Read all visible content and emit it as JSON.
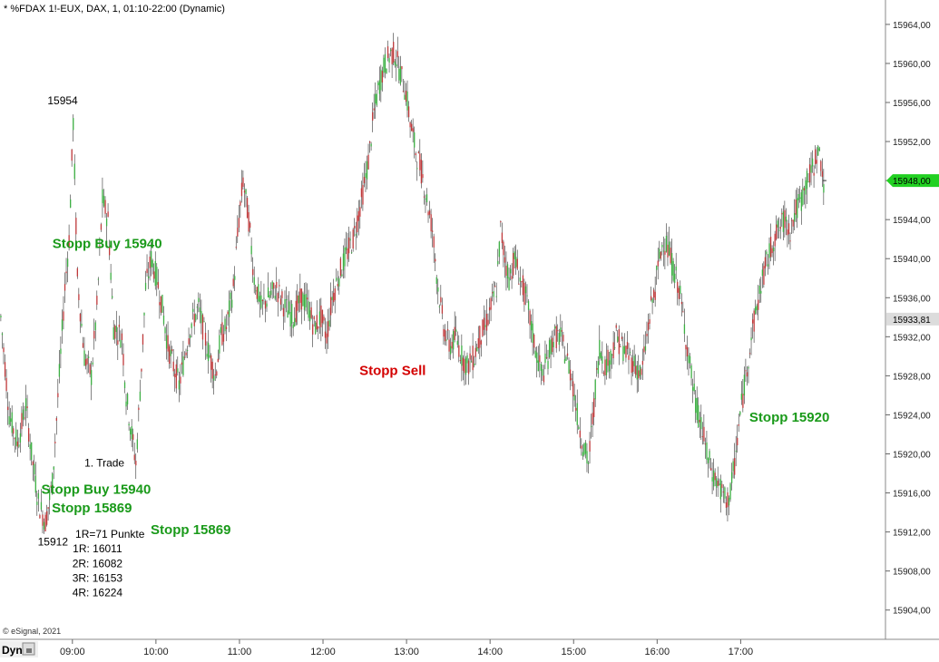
{
  "title": "* %FDAX 1!-EUX, DAX, 1, 01:10-22:00 (Dynamic)",
  "footer": "© eSignal, 2021",
  "dyn_label": "Dyn",
  "last_price_label": "15948,00",
  "ref_price_label": "15933,81",
  "colors": {
    "up": "#3cb043",
    "down": "#c0393b",
    "wick": "#333333",
    "last_bg": "#22d022",
    "ref_bg": "#dcdcdc"
  },
  "chart_data": {
    "type": "candlestick",
    "title": "* %FDAX 1!-EUX, DAX, 1, 01:10-22:00 (Dynamic)",
    "ylim": [
      15901,
      15966.5
    ],
    "y_ticks": [
      "15964,00",
      "15960,00",
      "15956,00",
      "15952,00",
      "15948,00",
      "15944,00",
      "15940,00",
      "15936,00",
      "15932,00",
      "15928,00",
      "15924,00",
      "15920,00",
      "15916,00",
      "15912,00",
      "15908,00",
      "15904,00"
    ],
    "y_tick_values": [
      15964,
      15960,
      15956,
      15952,
      15948,
      15944,
      15940,
      15936,
      15932,
      15928,
      15924,
      15920,
      15916,
      15912,
      15908,
      15904
    ],
    "x_ticks": [
      "09:00",
      "10:00",
      "11:00",
      "12:00",
      "13:00",
      "14:00",
      "15:00",
      "16:00",
      "17:00"
    ],
    "x_tick_minutes": [
      540,
      600,
      660,
      720,
      780,
      840,
      900,
      960,
      1020
    ],
    "x_range_minutes": [
      488,
      1124
    ],
    "last_price": 15948.0,
    "ref_price": 15933.81,
    "price_path": [
      [
        488,
        15934
      ],
      [
        494,
        15924
      ],
      [
        500,
        15921
      ],
      [
        506,
        15925
      ],
      [
        510,
        15920
      ],
      [
        515,
        15915
      ],
      [
        520,
        15913
      ],
      [
        525,
        15917
      ],
      [
        530,
        15928
      ],
      [
        534,
        15937
      ],
      [
        537,
        15942
      ],
      [
        540,
        15954
      ],
      [
        543,
        15938
      ],
      [
        548,
        15930
      ],
      [
        553,
        15928
      ],
      [
        557,
        15935
      ],
      [
        561,
        15946
      ],
      [
        565,
        15944
      ],
      [
        569,
        15933
      ],
      [
        575,
        15932
      ],
      [
        578,
        15926
      ],
      [
        582,
        15922
      ],
      [
        585,
        15919
      ],
      [
        589,
        15929
      ],
      [
        592,
        15937
      ],
      [
        596,
        15940
      ],
      [
        600,
        15938
      ],
      [
        604,
        15935
      ],
      [
        608,
        15931
      ],
      [
        612,
        15929
      ],
      [
        616,
        15927
      ],
      [
        620,
        15930
      ],
      [
        624,
        15933
      ],
      [
        630,
        15935
      ],
      [
        636,
        15931
      ],
      [
        642,
        15928
      ],
      [
        646,
        15932
      ],
      [
        650,
        15933
      ],
      [
        655,
        15937
      ],
      [
        659,
        15944
      ],
      [
        662,
        15948
      ],
      [
        666,
        15944
      ],
      [
        670,
        15938
      ],
      [
        675,
        15935
      ],
      [
        680,
        15936
      ],
      [
        686,
        15937
      ],
      [
        692,
        15935
      ],
      [
        698,
        15934
      ],
      [
        704,
        15936
      ],
      [
        709,
        15935
      ],
      [
        713,
        15933
      ],
      [
        718,
        15934
      ],
      [
        722,
        15932
      ],
      [
        726,
        15936
      ],
      [
        730,
        15938
      ],
      [
        735,
        15940
      ],
      [
        741,
        15942
      ],
      [
        747,
        15946
      ],
      [
        752,
        15950
      ],
      [
        756,
        15955
      ],
      [
        760,
        15958
      ],
      [
        764,
        15960
      ],
      [
        768,
        15961
      ],
      [
        771,
        15961
      ],
      [
        775,
        15959
      ],
      [
        779,
        15957
      ],
      [
        782,
        15954
      ],
      [
        786,
        15951
      ],
      [
        790,
        15949
      ],
      [
        794,
        15946
      ],
      [
        798,
        15943
      ],
      [
        802,
        15937
      ],
      [
        806,
        15933
      ],
      [
        810,
        15931
      ],
      [
        815,
        15932
      ],
      [
        819,
        15930
      ],
      [
        823,
        15929
      ],
      [
        828,
        15930
      ],
      [
        832,
        15932
      ],
      [
        836,
        15933
      ],
      [
        840,
        15935
      ],
      [
        844,
        15937
      ],
      [
        847,
        15943
      ],
      [
        850,
        15940
      ],
      [
        853,
        15938
      ],
      [
        857,
        15940
      ],
      [
        861,
        15938
      ],
      [
        865,
        15936
      ],
      [
        869,
        15933
      ],
      [
        873,
        15930
      ],
      [
        877,
        15928
      ],
      [
        881,
        15930
      ],
      [
        885,
        15932
      ],
      [
        890,
        15932
      ],
      [
        894,
        15930
      ],
      [
        898,
        15928
      ],
      [
        902,
        15924
      ],
      [
        906,
        15921
      ],
      [
        910,
        15919
      ],
      [
        914,
        15925
      ],
      [
        918,
        15931
      ],
      [
        922,
        15929
      ],
      [
        926,
        15930
      ],
      [
        930,
        15932
      ],
      [
        934,
        15931
      ],
      [
        939,
        15930
      ],
      [
        944,
        15929
      ],
      [
        948,
        15928
      ],
      [
        952,
        15932
      ],
      [
        955,
        15935
      ],
      [
        958,
        15937
      ],
      [
        961,
        15940
      ],
      [
        964,
        15942
      ],
      [
        967,
        15941
      ],
      [
        971,
        15939
      ],
      [
        975,
        15937
      ],
      [
        979,
        15933
      ],
      [
        983,
        15929
      ],
      [
        987,
        15925
      ],
      [
        991,
        15923
      ],
      [
        995,
        15920
      ],
      [
        999,
        15918
      ],
      [
        1003,
        15917
      ],
      [
        1006,
        15916
      ],
      [
        1009,
        15915
      ],
      [
        1012,
        15916
      ],
      [
        1015,
        15919
      ],
      [
        1019,
        15924
      ],
      [
        1023,
        15928
      ],
      [
        1027,
        15932
      ],
      [
        1031,
        15935
      ],
      [
        1035,
        15938
      ],
      [
        1039,
        15940
      ],
      [
        1043,
        15942
      ],
      [
        1047,
        15943
      ],
      [
        1051,
        15944
      ],
      [
        1055,
        15943
      ],
      [
        1059,
        15945
      ],
      [
        1063,
        15946
      ],
      [
        1067,
        15948
      ],
      [
        1071,
        15949
      ],
      [
        1074,
        15951
      ],
      [
        1077,
        15950
      ],
      [
        1079,
        15948
      ]
    ],
    "annotations": [
      {
        "text": "15954",
        "color": "black",
        "price": 15955.8,
        "minute": 533
      },
      {
        "text": "Stopp Buy 15940",
        "color": "green",
        "price": 15941.1,
        "minute": 565
      },
      {
        "text": "Stopp Sell",
        "color": "red",
        "price": 15928.1,
        "minute": 770
      },
      {
        "text": "Stopp 15920",
        "color": "green",
        "price": 15923.3,
        "minute": 1055
      },
      {
        "text": "1. Trade",
        "color": "black",
        "price": 15918.7,
        "minute": 563
      },
      {
        "text": "Stopp Buy 15940",
        "color": "green",
        "price": 15915.9,
        "minute": 557
      },
      {
        "text": "Stopp 15869",
        "color": "green",
        "price": 15914.0,
        "minute": 554
      },
      {
        "text": "Stopp 15869",
        "color": "green",
        "price": 15911.8,
        "minute": 625
      },
      {
        "text": "15912",
        "color": "black",
        "price": 15910.6,
        "minute": 526
      },
      {
        "text": "1R=71 Punkte",
        "color": "black",
        "price": 15911.4,
        "minute": 567
      },
      {
        "text": "1R: 16011",
        "color": "black",
        "price": 15909.9,
        "minute": 558
      },
      {
        "text": "2R: 16082",
        "color": "black",
        "price": 15908.4,
        "minute": 558
      },
      {
        "text": "3R: 16153",
        "color": "black",
        "price": 15906.9,
        "minute": 558
      },
      {
        "text": "4R: 16224",
        "color": "black",
        "price": 15905.4,
        "minute": 558
      }
    ]
  }
}
